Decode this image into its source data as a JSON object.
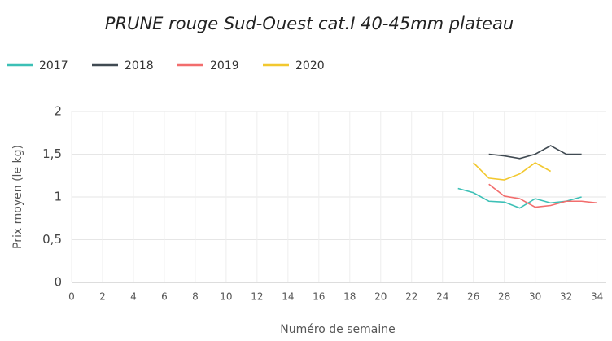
{
  "chart_data": {
    "type": "line",
    "title": "PRUNE rouge Sud-Ouest cat.I 40-45mm plateau",
    "x_label": "Numéro de semaine",
    "y_label": "Prix moyen  (le kg)",
    "x": [
      25,
      26,
      27,
      28,
      29,
      30,
      31,
      32,
      33,
      34
    ],
    "series": [
      {
        "name": "2017",
        "color": "#3cc0b6",
        "values": [
          1.1,
          1.05,
          0.95,
          0.94,
          0.87,
          0.98,
          0.93,
          0.95,
          1.0,
          null
        ]
      },
      {
        "name": "2018",
        "color": "#404a52",
        "values": [
          null,
          null,
          1.5,
          1.48,
          1.45,
          1.5,
          1.6,
          1.5,
          1.5,
          null
        ]
      },
      {
        "name": "2019",
        "color": "#f26d6d",
        "values": [
          null,
          null,
          1.15,
          1.01,
          0.98,
          0.88,
          0.9,
          0.95,
          0.95,
          0.93
        ]
      },
      {
        "name": "2020",
        "color": "#f2c82f",
        "values": [
          null,
          1.4,
          1.22,
          1.2,
          1.27,
          1.4,
          1.3,
          null,
          null,
          null
        ]
      }
    ],
    "xlim": [
      0,
      34.6
    ],
    "xticks": [
      0,
      2,
      4,
      6,
      8,
      10,
      12,
      14,
      16,
      18,
      20,
      22,
      24,
      26,
      28,
      30,
      32,
      34
    ],
    "ylim": [
      0,
      2
    ],
    "yticks": [
      0,
      {
        "value": 0.5,
        "label": "0,5"
      },
      1,
      {
        "value": 1.5,
        "label": "1,5"
      },
      2
    ],
    "grid": true,
    "legend": "top-left"
  }
}
